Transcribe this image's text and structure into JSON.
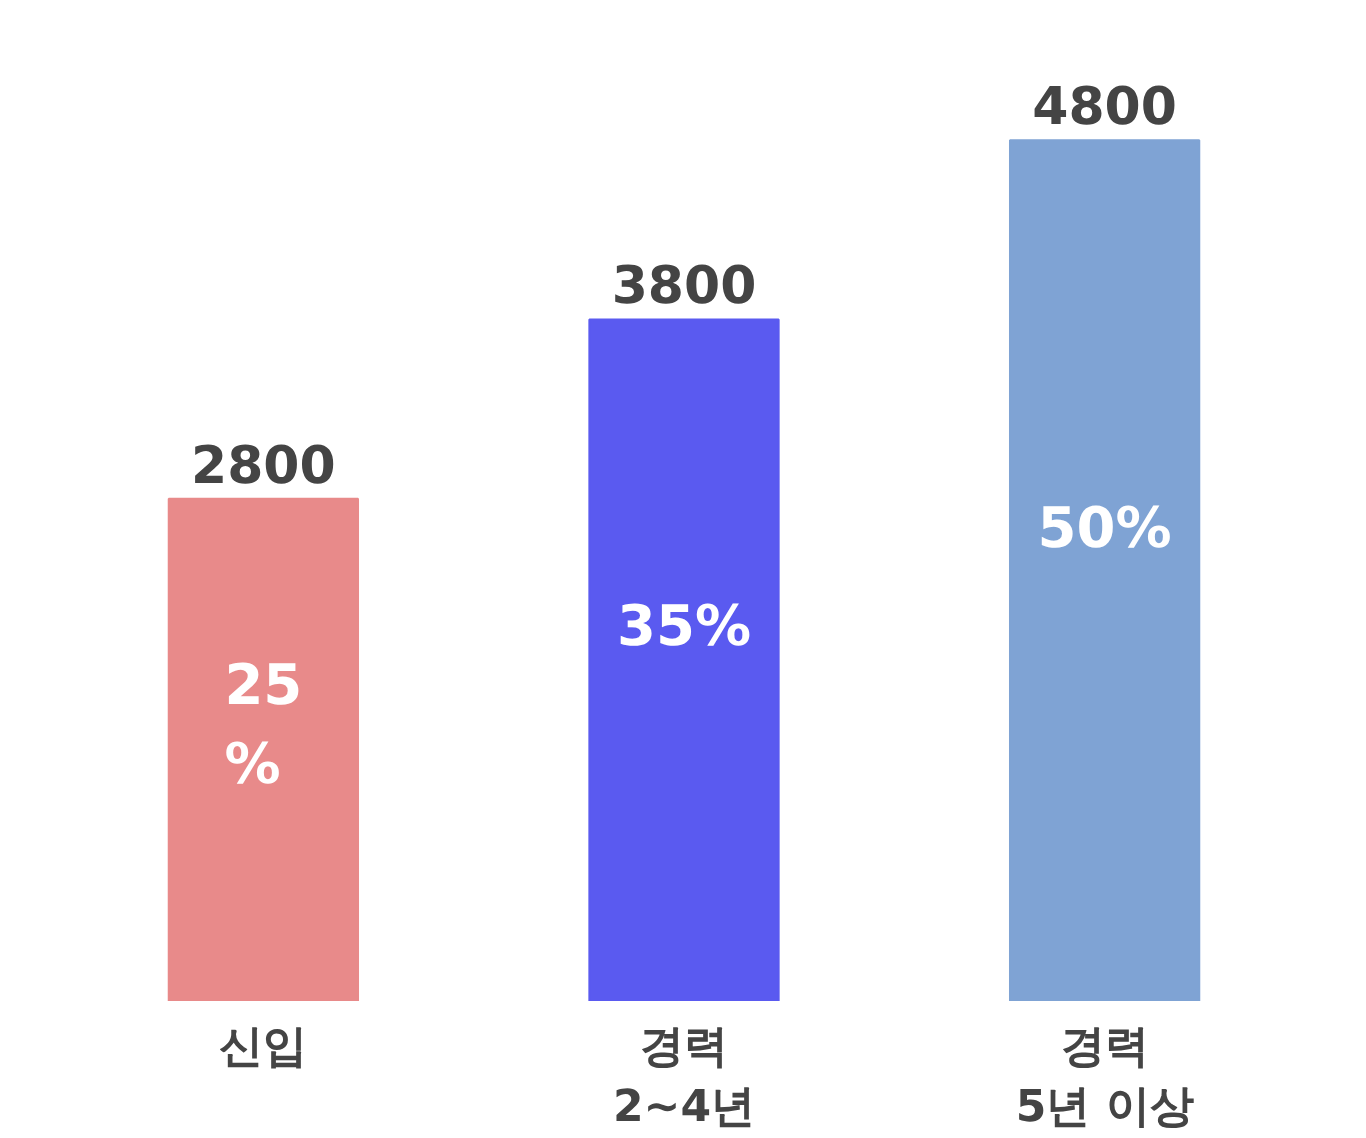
{
  "chart_data": {
    "type": "bar",
    "categories": [
      "신입",
      "경력\n2~4년",
      "경력\n5년 이상"
    ],
    "values": [
      2800,
      3800,
      4800
    ],
    "colors": [
      "#e88a8a",
      "#5a5af0",
      "#7fa3d4"
    ],
    "data_labels": true,
    "annotations": [
      "25\n%",
      "35%",
      "50%"
    ]
  }
}
